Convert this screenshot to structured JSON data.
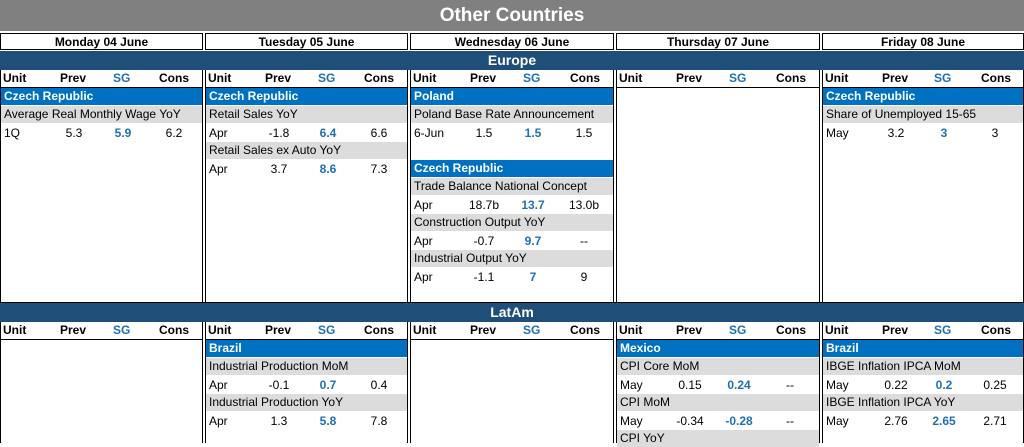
{
  "title": "Other Countries",
  "days": [
    "Monday 04 June",
    "Tuesday 05 June",
    "Wednesday 06 June",
    "Thursday 07 June",
    "Friday 08 June"
  ],
  "headers": {
    "unit": "Unit",
    "prev": "Prev",
    "sg": "SG",
    "cons": "Cons"
  },
  "sections": [
    {
      "region": "Europe",
      "columns": [
        {
          "blocks": [
            {
              "country": "Czech Republic",
              "indicators": [
                {
                  "name": "Average Real Monthly Wage YoY",
                  "unit": "1Q",
                  "prev": "5.3",
                  "sg": "5.9",
                  "cons": "6.2"
                }
              ]
            }
          ]
        },
        {
          "blocks": [
            {
              "country": "Czech Republic",
              "indicators": [
                {
                  "name": "Retail Sales YoY",
                  "unit": "Apr",
                  "prev": "-1.8",
                  "sg": "6.4",
                  "cons": "6.6"
                },
                {
                  "name": "Retail Sales ex Auto YoY",
                  "unit": "Apr",
                  "prev": "3.7",
                  "sg": "8.6",
                  "cons": "7.3"
                }
              ]
            }
          ]
        },
        {
          "blocks": [
            {
              "country": "Poland",
              "indicators": [
                {
                  "name": "Poland Base Rate Announcement",
                  "unit": "6-Jun",
                  "prev": "1.5",
                  "sg": "1.5",
                  "cons": "1.5"
                }
              ]
            },
            {
              "country": "Czech Republic",
              "indicators": [
                {
                  "name": "Trade Balance National Concept",
                  "unit": "Apr",
                  "prev": "18.7b",
                  "sg": "13.7",
                  "cons": "13.0b"
                },
                {
                  "name": "Construction Output YoY",
                  "unit": "Apr",
                  "prev": "-0.7",
                  "sg": "9.7",
                  "cons": "--"
                },
                {
                  "name": "Industrial Output YoY",
                  "unit": "Apr",
                  "prev": "-1.1",
                  "sg": "7",
                  "cons": "9"
                }
              ]
            }
          ]
        },
        {
          "blocks": []
        },
        {
          "blocks": [
            {
              "country": "Czech Republic",
              "indicators": [
                {
                  "name": "Share of Unemployed 15-65",
                  "unit": "May",
                  "prev": "3.2",
                  "sg": "3",
                  "cons": "3"
                }
              ]
            }
          ]
        }
      ]
    },
    {
      "region": "LatAm",
      "columns": [
        {
          "blocks": []
        },
        {
          "blocks": [
            {
              "country": "Brazil",
              "indicators": [
                {
                  "name": "Industrial Production MoM",
                  "unit": "Apr",
                  "prev": "-0.1",
                  "sg": "0.7",
                  "cons": "0.4"
                },
                {
                  "name": "Industrial Production YoY",
                  "unit": "Apr",
                  "prev": "1.3",
                  "sg": "5.8",
                  "cons": "7.8"
                }
              ]
            }
          ]
        },
        {
          "blocks": []
        },
        {
          "blocks": [
            {
              "country": "Mexico",
              "indicators": [
                {
                  "name": "CPI Core MoM",
                  "unit": "May",
                  "prev": "0.15",
                  "sg": "0.24",
                  "cons": "--"
                },
                {
                  "name": "CPI MoM",
                  "unit": "May",
                  "prev": "-0.34",
                  "sg": "-0.28",
                  "cons": "--"
                },
                {
                  "name": "CPI YoY",
                  "unit": "",
                  "prev": "",
                  "sg": "",
                  "cons": ""
                }
              ]
            }
          ]
        },
        {
          "blocks": [
            {
              "country": "Brazil",
              "indicators": [
                {
                  "name": "IBGE Inflation IPCA MoM",
                  "unit": "May",
                  "prev": "0.22",
                  "sg": "0.2",
                  "cons": "0.25"
                },
                {
                  "name": "IBGE Inflation IPCA YoY",
                  "unit": "May",
                  "prev": "2.76",
                  "sg": "2.65",
                  "cons": "2.71"
                }
              ]
            }
          ]
        }
      ]
    }
  ]
}
